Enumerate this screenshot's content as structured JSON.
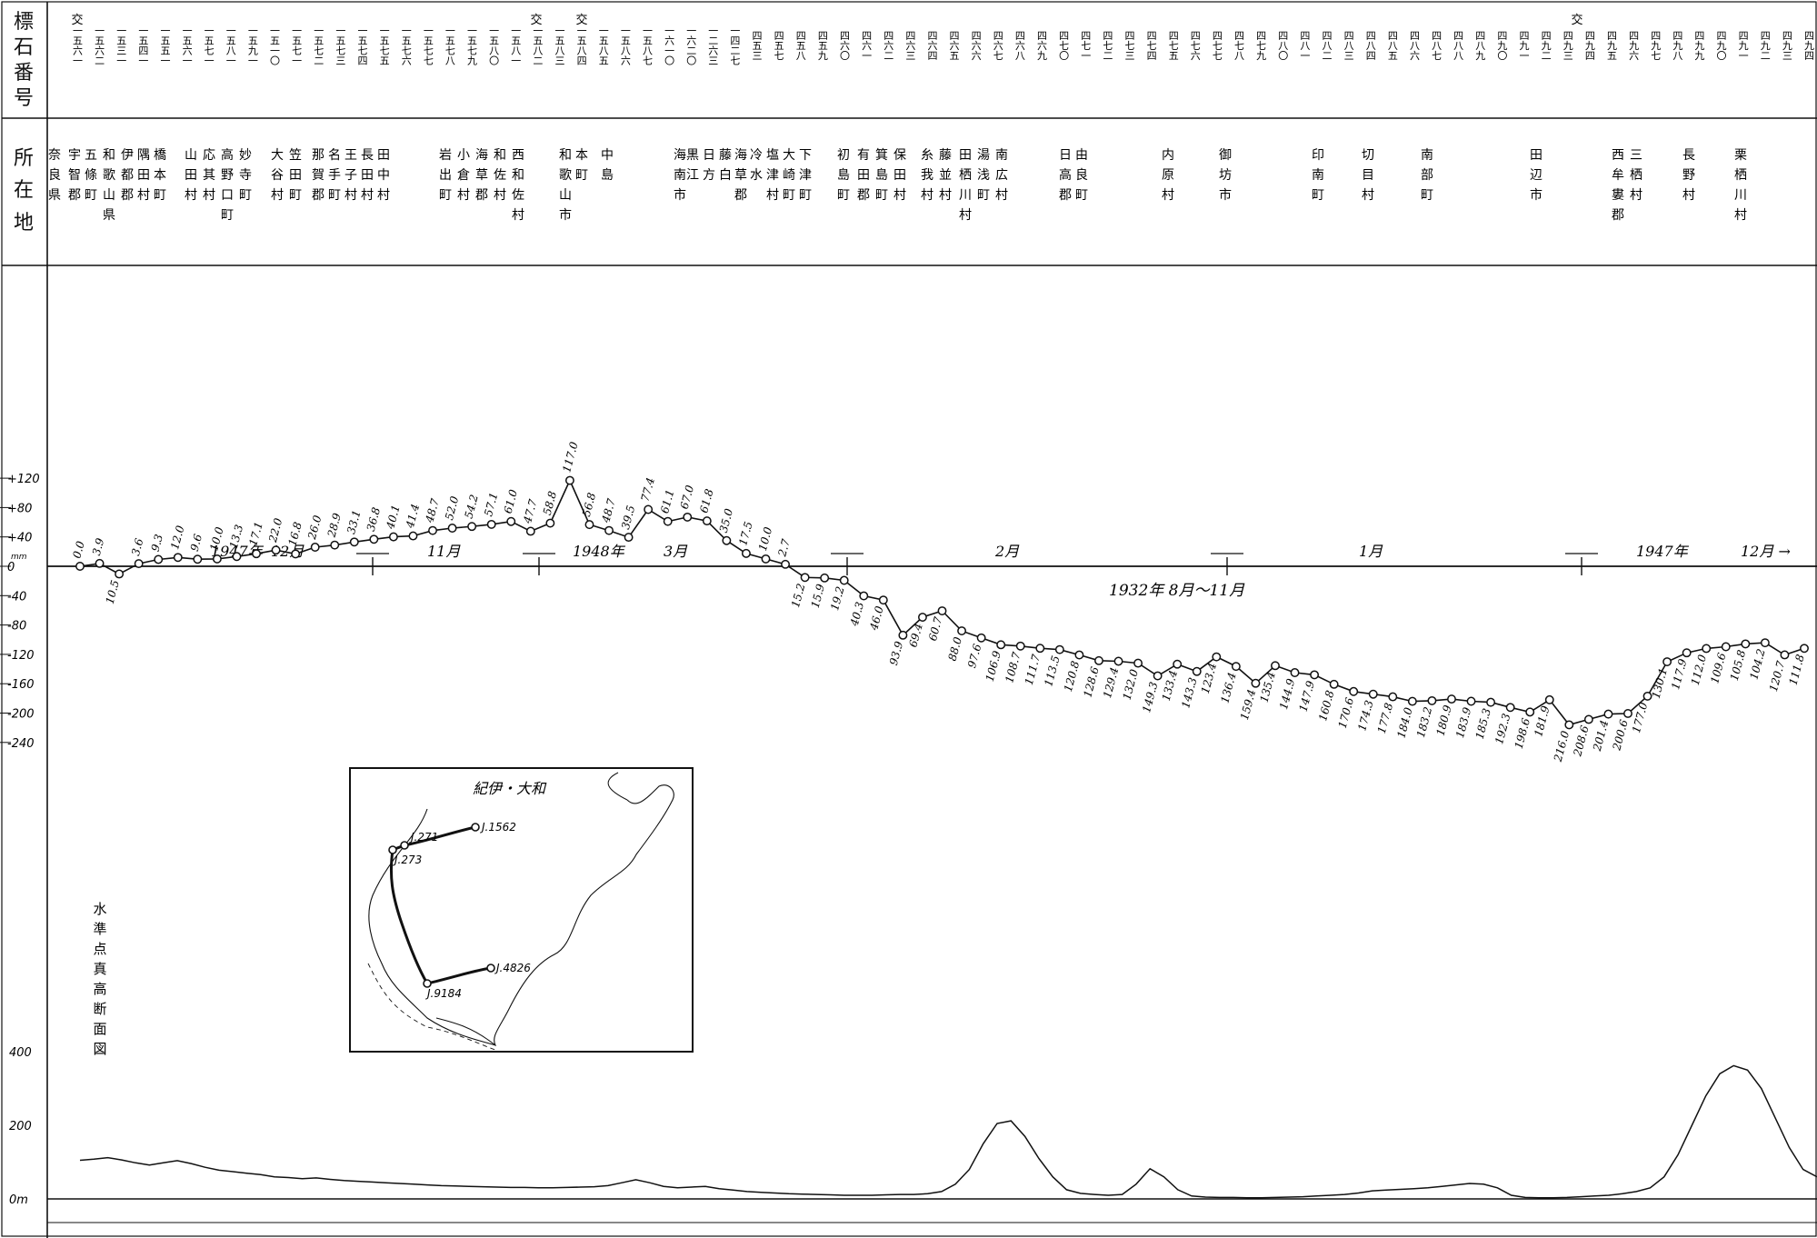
{
  "header": {
    "benchmark_label": [
      "標",
      "石",
      "番",
      "号"
    ],
    "location_label": [
      "所",
      "在",
      "地"
    ],
    "cross_marks": [
      "交",
      "交",
      "交",
      "交"
    ],
    "benchmark_numbers": [
      "一五六一",
      "一五六二",
      "一五三一",
      "一五四一",
      "一五五一",
      "一五六一",
      "一五七一",
      "一五八一",
      "一五九一",
      "一五一〇",
      "一五七一",
      "一五七二",
      "一五七三",
      "一五七四",
      "一五七五",
      "一五七六",
      "一五七七",
      "一五七八",
      "一五七九",
      "一五八〇",
      "一五八一",
      "一五八二",
      "一五八三",
      "一五八四",
      "一五八五",
      "一五八六",
      "一五八七",
      "一六一〇",
      "一六二〇",
      "一二六三",
      "一四二七",
      "四五三",
      "四五七",
      "四五八",
      "四五九",
      "四六〇",
      "四六一",
      "四六二",
      "四六三",
      "四六四",
      "四六五",
      "四六六",
      "四六七",
      "四六八",
      "四六九",
      "四七〇",
      "四七一",
      "四七二",
      "四七三",
      "四七四",
      "四七五",
      "四七六",
      "四七七",
      "四七八",
      "四七九",
      "四八〇",
      "四八一",
      "四八二",
      "四八三",
      "四八四",
      "四八五",
      "四八六",
      "四八七",
      "四八八",
      "四八九",
      "四九〇",
      "四九一",
      "四九二",
      "四九三",
      "四九四",
      "四九五",
      "四九六",
      "四九七",
      "四九八",
      "四九九",
      "四九〇",
      "四九一",
      "四九二",
      "四九三",
      "四九四"
    ]
  },
  "locations": [
    [
      "奈",
      "良",
      "県"
    ],
    [
      "宇",
      "智",
      "郡"
    ],
    [
      "五",
      "條",
      "町"
    ],
    [
      "和",
      "歌",
      "山",
      "県"
    ],
    [
      "伊",
      "都",
      "郡"
    ],
    [
      "隅",
      "田",
      "村"
    ],
    [
      "橋",
      "本",
      "町"
    ],
    [
      "山",
      "田",
      "村"
    ],
    [
      "応",
      "其",
      "村"
    ],
    [
      "高",
      "野",
      "口",
      "町"
    ],
    [
      "妙",
      "寺",
      "町"
    ],
    [
      "大",
      "谷",
      "村"
    ],
    [
      "笠",
      "田",
      "町"
    ],
    [
      "那",
      "賀",
      "郡"
    ],
    [
      "名",
      "手",
      "町"
    ],
    [
      "王",
      "子",
      "村"
    ],
    [
      "長",
      "田",
      "村"
    ],
    [
      "田",
      "中",
      "村"
    ],
    [
      "岩",
      "出",
      "町"
    ],
    [
      "小",
      "倉",
      "村"
    ],
    [
      "海",
      "草",
      "郡"
    ],
    [
      "和",
      "佐",
      "村"
    ],
    [
      "西",
      "和",
      "佐",
      "村"
    ],
    [
      "和",
      "歌",
      "山",
      "市"
    ],
    [
      "本",
      "町"
    ],
    [
      "中",
      "島"
    ],
    [
      "海",
      "南",
      "市"
    ],
    [
      "黒",
      "江"
    ],
    [
      "日",
      "方"
    ],
    [
      "藤",
      "白"
    ],
    [
      "海",
      "草",
      "郡"
    ],
    [
      "冷",
      "水"
    ],
    [
      "塩",
      "津",
      "村"
    ],
    [
      "大",
      "崎",
      "町"
    ],
    [
      "下",
      "津",
      "町"
    ],
    [
      "初",
      "島",
      "町"
    ],
    [
      "有",
      "田",
      "郡"
    ],
    [
      "箕",
      "島",
      "町"
    ],
    [
      "保",
      "田",
      "村"
    ],
    [
      "糸",
      "我",
      "村"
    ],
    [
      "藤",
      "並",
      "村"
    ],
    [
      "田",
      "栖",
      "川",
      "村"
    ],
    [
      "湯",
      "浅",
      "町"
    ],
    [
      "南",
      "広",
      "村"
    ],
    [
      "日",
      "高",
      "郡"
    ],
    [
      "由",
      "良",
      "町"
    ],
    [
      "内",
      "原",
      "村"
    ],
    [
      "御",
      "坊",
      "市"
    ],
    [
      "印",
      "南",
      "町"
    ],
    [
      "切",
      "目",
      "村"
    ],
    [
      "南",
      "部",
      "町"
    ],
    [
      "田",
      "辺",
      "市"
    ],
    [
      "西",
      "牟",
      "婁",
      "郡"
    ],
    [
      "三",
      "栖",
      "村"
    ],
    [
      "長",
      "野",
      "村"
    ],
    [
      "栗",
      "栖",
      "川",
      "村"
    ]
  ],
  "main_chart": {
    "y_ticks": [
      "+120",
      "+80",
      "+40",
      "0",
      "-40",
      "-80",
      "-120",
      "-160",
      "-200",
      "-240"
    ],
    "zero_unit": "mm",
    "period_labels": [
      "1947年",
      "12月",
      "11月",
      "1948年",
      "3月",
      "2月",
      "1月",
      "1947年",
      "12月 →"
    ],
    "baseline_period": "1932年 8月～11月"
  },
  "chart_data": {
    "type": "line",
    "ylabel": "",
    "ylim": [
      -240,
      120
    ],
    "grid": false,
    "series": [
      {
        "values": [
          0.0,
          3.9,
          -10.5,
          3.6,
          9.3,
          12.0,
          9.6,
          10.0,
          13.3,
          17.1,
          22.0,
          16.8,
          26.0,
          28.9,
          33.1,
          36.8,
          40.1,
          41.4,
          48.7,
          52.0,
          54.2,
          57.1,
          61.0,
          47.7,
          58.8,
          117.0,
          56.8,
          48.7,
          39.5,
          77.4,
          61.1,
          67.0,
          61.8,
          35.0,
          17.5,
          10.0,
          2.7,
          -15.2,
          -15.9,
          -19.2,
          -40.3,
          -46.0,
          -93.9,
          -69.4,
          -60.7,
          -88.0,
          -97.6,
          -106.9,
          -108.7,
          -111.7,
          -113.5,
          -120.8,
          -128.6,
          -129.4,
          -132.0,
          -149.3,
          -133.4,
          -143.3,
          -123.4,
          -136.4,
          -159.4,
          -135.4,
          -144.9,
          -147.9,
          -160.8,
          -170.6,
          -174.3,
          -177.8,
          -184.0,
          -183.2,
          -180.9,
          -183.9,
          -185.3,
          -192.3,
          -198.6,
          -181.9,
          -216.0,
          -208.6,
          -201.4,
          -200.6,
          -177.0,
          -130.1,
          -117.9,
          -112.0,
          -109.6,
          -105.8,
          -104.2,
          -120.7,
          -111.8
        ],
        "labels": [
          "0.0",
          "3.9",
          "10.5",
          "3.6",
          "9.3",
          "12.0",
          "9.6",
          "10.0",
          "13.3",
          "17.1",
          "22.0",
          "16.8",
          "26.0",
          "28.9",
          "33.1",
          "36.8",
          "40.1",
          "41.4",
          "48.7",
          "52.0",
          "54.2",
          "57.1",
          "61.0",
          "47.7",
          "58.8",
          "117.0",
          "56.8",
          "48.7",
          "39.5",
          "77.4",
          "61.1",
          "67.0",
          "61.8",
          "35.0",
          "17.5",
          "10.0",
          "2.7",
          "15.2",
          "15.9",
          "19.2",
          "40.3",
          "46.0",
          "93.9",
          "69.4",
          "60.7",
          "88.0",
          "97.6",
          "106.9",
          "108.7",
          "111.7",
          "113.5",
          "120.8",
          "128.6",
          "129.4",
          "132.0",
          "149.3",
          "133.4",
          "143.3",
          "123.4",
          "136.4",
          "159.4",
          "135.4",
          "144.9",
          "147.9",
          "160.8",
          "170.6",
          "174.3",
          "177.8",
          "184.0",
          "183.2",
          "180.9",
          "183.9",
          "185.3",
          "192.3",
          "198.6",
          "181.9",
          "216.0",
          "208.6",
          "201.4",
          "200.6",
          "177.0",
          "130.1",
          "117.9",
          "112.0",
          "109.6",
          "105.8",
          "104.2",
          "120.7",
          "111.8"
        ]
      }
    ],
    "elevation_profile": {
      "ylim": [
        0,
        400
      ],
      "y_ticks": [
        "400",
        "200",
        "0m"
      ],
      "title": "水準点真高断面図",
      "values": [
        105,
        108,
        112,
        106,
        98,
        92,
        98,
        104,
        96,
        86,
        78,
        74,
        70,
        66,
        60,
        58,
        55,
        57,
        53,
        50,
        48,
        46,
        44,
        42,
        40,
        38,
        36,
        35,
        34,
        33,
        32,
        31,
        31,
        30,
        30,
        31,
        32,
        33,
        36,
        44,
        52,
        44,
        34,
        30,
        32,
        34,
        28,
        24,
        20,
        18,
        16,
        14,
        13,
        12,
        11,
        10,
        10,
        10,
        11,
        12,
        12,
        14,
        20,
        40,
        80,
        150,
        205,
        212,
        170,
        110,
        60,
        25,
        15,
        12,
        10,
        12,
        40,
        82,
        60,
        25,
        8,
        5,
        4,
        4,
        3,
        3,
        4,
        5,
        6,
        8,
        10,
        12,
        16,
        22,
        24,
        26,
        28,
        30,
        34,
        38,
        42,
        40,
        30,
        10,
        4,
        3,
        3,
        4,
        6,
        8,
        10,
        14,
        20,
        30,
        60,
        120,
        200,
        280,
        340,
        362,
        350,
        300,
        220,
        140,
        80,
        60
      ]
    }
  },
  "inset_map": {
    "title": "紀伊・大和",
    "stations": [
      "J.1562",
      "J.271",
      "J.273",
      "J.4826",
      "J.9184"
    ]
  },
  "side_title": [
    "水",
    "準",
    "点",
    "真",
    "高",
    "断",
    "面",
    "図"
  ]
}
